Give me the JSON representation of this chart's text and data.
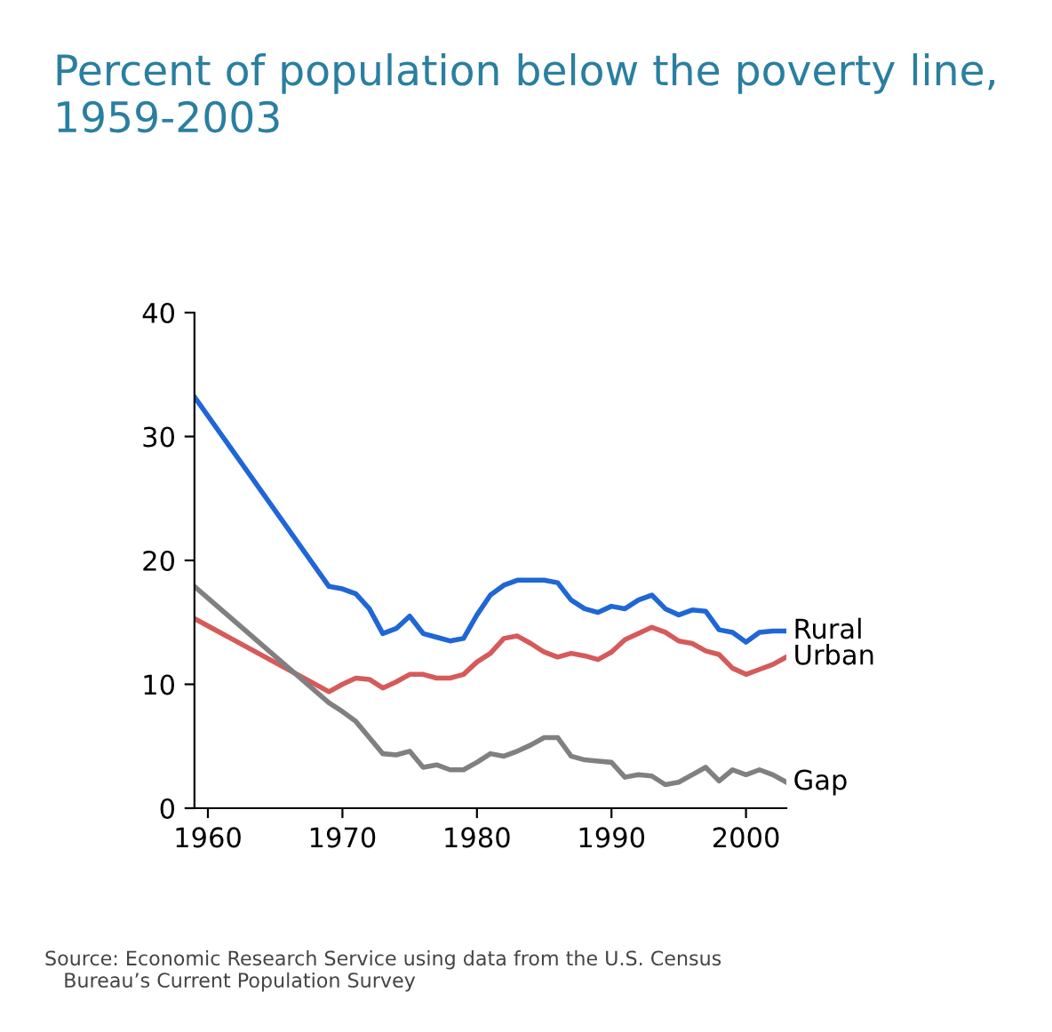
{
  "chart_data": {
    "type": "line",
    "title": "Percent of population below the poverty line, 1959-2003",
    "x": [
      1959,
      1969,
      1970,
      1971,
      1972,
      1973,
      1974,
      1975,
      1976,
      1977,
      1978,
      1979,
      1980,
      1981,
      1982,
      1983,
      1984,
      1985,
      1986,
      1987,
      1988,
      1989,
      1990,
      1991,
      1992,
      1993,
      1994,
      1995,
      1996,
      1997,
      1998,
      1999,
      2000,
      2001,
      2002,
      2003
    ],
    "series": [
      {
        "name": "Rural",
        "color": "#1f66d6",
        "values": [
          33.2,
          17.9,
          17.7,
          17.3,
          16.1,
          14.1,
          14.5,
          15.5,
          14.1,
          13.8,
          13.5,
          13.7,
          15.6,
          17.2,
          18.0,
          18.4,
          18.4,
          18.4,
          18.2,
          16.8,
          16.1,
          15.8,
          16.3,
          16.1,
          16.8,
          17.2,
          16.1,
          15.6,
          16.0,
          15.9,
          14.4,
          14.2,
          13.4,
          14.2,
          14.3,
          14.3
        ]
      },
      {
        "name": "Urban",
        "color": "#d65a5a",
        "values": [
          15.3,
          9.4,
          10.0,
          10.5,
          10.4,
          9.7,
          10.2,
          10.8,
          10.8,
          10.5,
          10.5,
          10.8,
          11.8,
          12.5,
          13.7,
          13.9,
          13.3,
          12.6,
          12.2,
          12.5,
          12.3,
          12.0,
          12.6,
          13.6,
          14.1,
          14.6,
          14.2,
          13.5,
          13.3,
          12.7,
          12.4,
          11.3,
          10.8,
          11.2,
          11.6,
          12.2
        ]
      },
      {
        "name": "Gap",
        "color": "#808080",
        "values": [
          17.9,
          8.5,
          7.8,
          7.0,
          5.7,
          4.4,
          4.3,
          4.6,
          3.3,
          3.5,
          3.1,
          3.1,
          3.7,
          4.4,
          4.2,
          4.6,
          5.1,
          5.7,
          5.7,
          4.2,
          3.9,
          3.8,
          3.7,
          2.5,
          2.7,
          2.6,
          1.9,
          2.1,
          2.7,
          3.3,
          2.2,
          3.1,
          2.7,
          3.1,
          2.7,
          2.1
        ]
      }
    ],
    "xlim": [
      1959,
      2003
    ],
    "xticks": [
      1960,
      1970,
      1980,
      1990,
      2000
    ],
    "ylim": [
      0,
      40
    ],
    "yticks": [
      0,
      10,
      20,
      30,
      40
    ],
    "grid": false,
    "legend": false,
    "line_style": "solid",
    "marker": "none",
    "annotations": [
      "Source: Economic Research Service using data from the U.S. Census\n   Bureau’s Current Population Survey"
    ]
  }
}
